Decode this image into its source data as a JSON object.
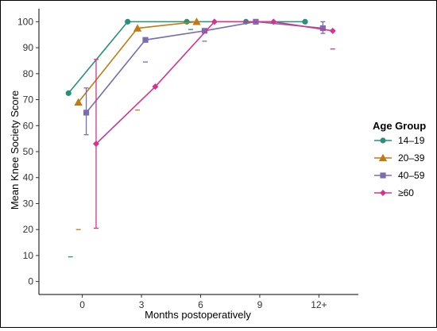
{
  "chart_data": {
    "type": "line",
    "xlabel": "Months postoperatively",
    "ylabel": "Mean Knee Society Score",
    "x_ticks": [
      "0",
      "3",
      "6",
      "9",
      "12+"
    ],
    "y_ticks": [
      "0",
      "10",
      "20",
      "30",
      "40",
      "50",
      "60",
      "70",
      "80",
      "90",
      "100"
    ],
    "ylim": [
      -5,
      105
    ],
    "grid": false,
    "legend": {
      "title": "Age Group",
      "position": "right"
    },
    "series": [
      {
        "name": "14–19",
        "color": "#2a8f7a",
        "marker": "circle",
        "points": [
          {
            "x": -0.7,
            "y": 72.5
          },
          {
            "x": 2.3,
            "y": 100
          },
          {
            "x": 5.3,
            "y": 100
          },
          {
            "x": 8.3,
            "y": 100
          },
          {
            "x": 11.3,
            "y": 100
          }
        ],
        "errors": [
          {
            "x": -0.6,
            "low": 9.5,
            "high": 9.5
          },
          {
            "x": 5.5,
            "low": 97,
            "high": 97
          }
        ]
      },
      {
        "name": "20–39",
        "color": "#c07a10",
        "marker": "triangle",
        "points": [
          {
            "x": -0.2,
            "y": 69
          },
          {
            "x": 2.8,
            "y": 97.5
          },
          {
            "x": 5.8,
            "y": 100
          }
        ],
        "errors": [
          {
            "x": -0.2,
            "low": 20,
            "high": 20
          },
          {
            "x": 2.8,
            "low": 66,
            "high": 66
          },
          {
            "x": 5.8,
            "low": 100,
            "high": 100
          }
        ]
      },
      {
        "name": "40–59",
        "color": "#7a6cb0",
        "marker": "square",
        "points": [
          {
            "x": 0.2,
            "y": 65
          },
          {
            "x": 3.2,
            "y": 93
          },
          {
            "x": 6.2,
            "y": 96.5
          },
          {
            "x": 8.8,
            "y": 100
          },
          {
            "x": 12.2,
            "y": 97.5
          }
        ],
        "errors": [
          {
            "x": 0.2,
            "low": 56.5,
            "high": 74.5
          },
          {
            "x": 3.2,
            "low": 84.5,
            "high": 84.5
          },
          {
            "x": 6.2,
            "low": 92.5,
            "high": 92.5
          },
          {
            "x": 12.2,
            "low": 95.5,
            "high": 100
          }
        ]
      },
      {
        "name": "≥60",
        "color": "#d2358e",
        "marker": "diamond",
        "points": [
          {
            "x": 0.7,
            "y": 53
          },
          {
            "x": 3.7,
            "y": 75
          },
          {
            "x": 6.7,
            "y": 100
          },
          {
            "x": 9.7,
            "y": 100
          },
          {
            "x": 12.7,
            "y": 96.5
          }
        ],
        "errors": [
          {
            "x": 0.7,
            "low": 20.5,
            "high": 85.5
          },
          {
            "x": 12.7,
            "low": 89.5,
            "high": 89.5
          }
        ]
      }
    ]
  }
}
